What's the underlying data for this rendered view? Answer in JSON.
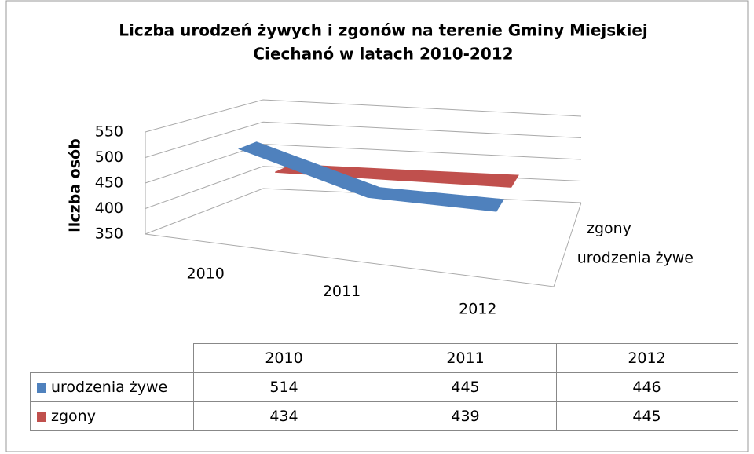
{
  "chart_data": {
    "type": "line3d",
    "title": [
      "Liczba urodzeń żywych i zgonów na terenie Gminy Miejskiej",
      "Ciechanó w latach 2010-2012"
    ],
    "y_label": "liczba osób",
    "categories": [
      "2010",
      "2011",
      "2012"
    ],
    "series": [
      {
        "name": "urodzenia żywe",
        "color": "#4f81bd",
        "values": [
          514,
          445,
          446
        ]
      },
      {
        "name": "zgony",
        "color": "#c0504d",
        "values": [
          434,
          439,
          445
        ]
      }
    ],
    "ylim": [
      350,
      550
    ],
    "yticks": [
      350,
      400,
      450,
      500,
      550
    ],
    "grid": true,
    "data_table": true
  }
}
